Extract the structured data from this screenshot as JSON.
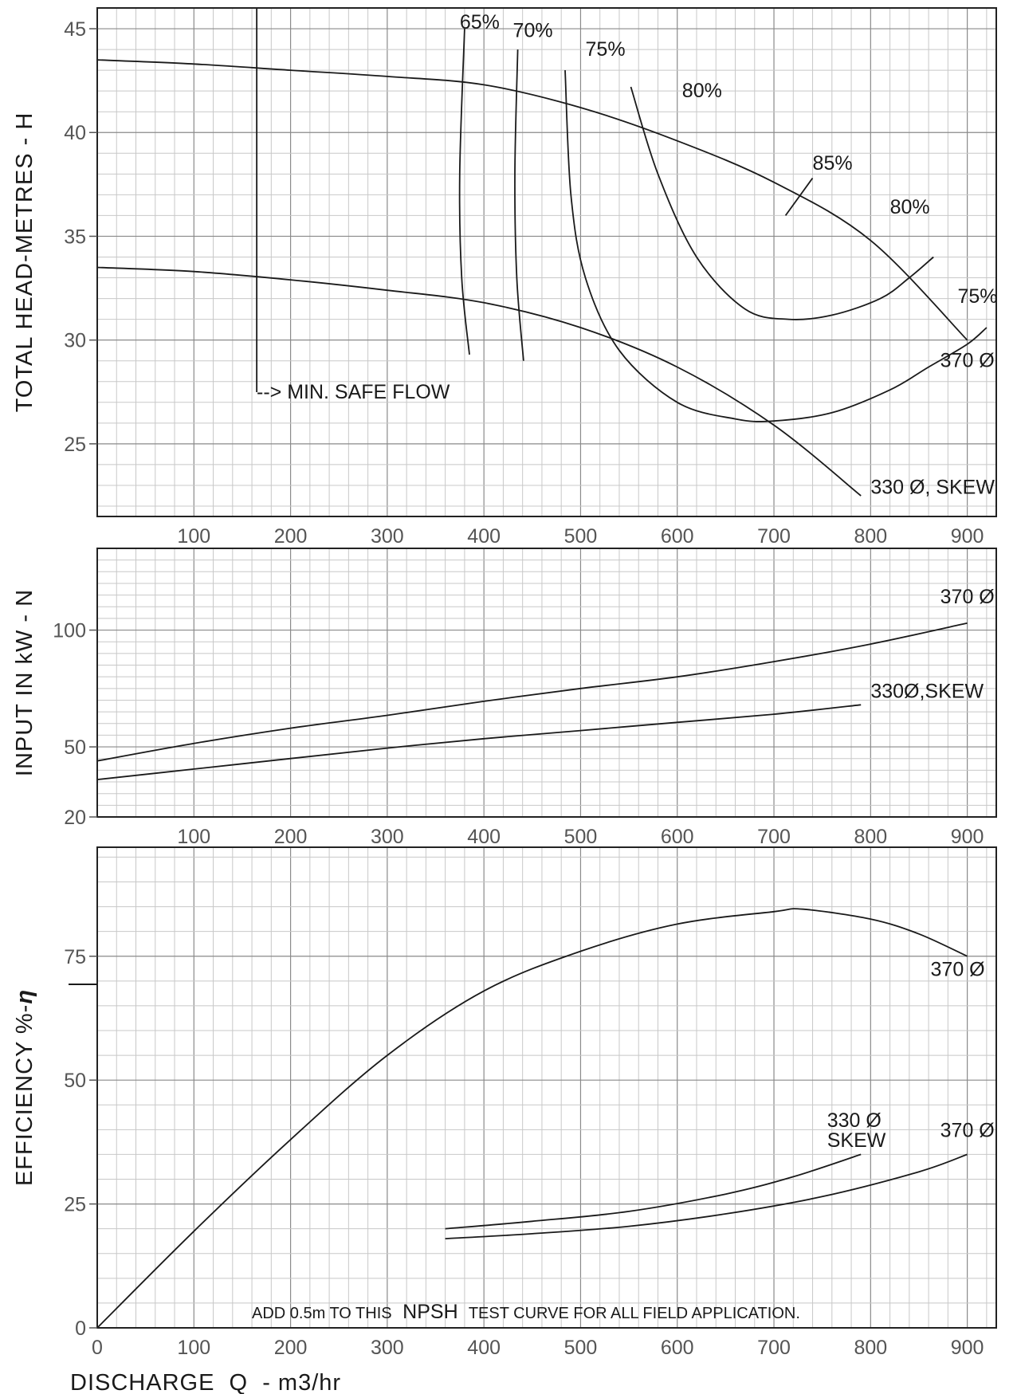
{
  "page": {
    "xlabel": "DISCHARGE  Q  - m3/hr",
    "note_prefix": "ADD 0.5m TO THIS",
    "note_mid": "NPSH",
    "note_suffix": "TEST CURVE FOR ALL FIELD APPLICATION.",
    "min_safe_flow": "--> MIN. SAFE FLOW"
  },
  "chart_data": [
    {
      "id": "head",
      "type": "line",
      "ylabel": "TOTAL HEAD-METRES - H",
      "xlim": [
        0,
        930
      ],
      "ylim": [
        21.5,
        46
      ],
      "x_ticks": [
        100,
        200,
        300,
        400,
        500,
        600,
        700,
        800,
        900
      ],
      "x_tick_labels": [
        "100",
        "200",
        "300",
        "400",
        "500",
        "600",
        "700",
        "800",
        "900"
      ],
      "y_ticks": [
        25,
        30,
        35,
        40,
        45
      ],
      "y_tick_labels": [
        "25",
        "30",
        "35",
        "40",
        "45"
      ],
      "min_safe_flow_x": 165,
      "series": [
        {
          "name": "370 Ø",
          "x": [
            0,
            100,
            200,
            300,
            400,
            500,
            600,
            700,
            800,
            900
          ],
          "y": [
            43.5,
            43.3,
            43.0,
            42.7,
            42.3,
            41.2,
            39.6,
            37.6,
            34.8,
            30.0
          ]
        },
        {
          "name": "330 Ø, SKEW",
          "x": [
            0,
            100,
            200,
            300,
            400,
            500,
            600,
            700,
            790
          ],
          "y": [
            33.5,
            33.3,
            32.9,
            32.4,
            31.8,
            30.6,
            28.7,
            25.9,
            22.5
          ]
        }
      ],
      "efficiency_contours": [
        {
          "name": "65%",
          "x": [
            380,
            375,
            377,
            385
          ],
          "y": [
            45.0,
            38.0,
            33.0,
            29.3
          ]
        },
        {
          "name": "70%",
          "x": [
            435,
            432,
            434,
            441
          ],
          "y": [
            44.0,
            38.0,
            33.0,
            29.0
          ]
        },
        {
          "name": "75%",
          "x": [
            484,
            490,
            505,
            540,
            600,
            660,
            700,
            760,
            820,
            860,
            900,
            920
          ],
          "y": [
            43.0,
            37.0,
            33.0,
            29.5,
            27.0,
            26.2,
            26.1,
            26.5,
            27.6,
            28.7,
            29.8,
            30.6
          ]
        },
        {
          "name": "80%",
          "x": [
            552,
            580,
            620,
            670,
            715,
            760,
            810,
            840,
            865
          ],
          "y": [
            42.2,
            38.0,
            34.0,
            31.5,
            31.0,
            31.2,
            32.0,
            33.0,
            34.0
          ]
        },
        {
          "name": "85%",
          "x": [
            712,
            740
          ],
          "y": [
            36.0,
            37.8
          ]
        }
      ],
      "annotations": [
        {
          "text": "65%",
          "x": 375,
          "y": 45.0
        },
        {
          "text": "70%",
          "x": 430,
          "y": 44.6
        },
        {
          "text": "75%",
          "x": 505,
          "y": 43.7
        },
        {
          "text": "80%",
          "x": 605,
          "y": 41.7
        },
        {
          "text": "85%",
          "x": 740,
          "y": 38.2
        },
        {
          "text": "80%",
          "x": 820,
          "y": 36.1
        },
        {
          "text": "75%",
          "x": 890,
          "y": 31.8
        },
        {
          "text": "370 Ø",
          "x": 872,
          "y": 28.7
        },
        {
          "text": "330 Ø, SKEW",
          "x": 800,
          "y": 22.6
        }
      ]
    },
    {
      "id": "power",
      "type": "line",
      "ylabel": "INPUT IN kW - N",
      "xlim": [
        0,
        930
      ],
      "ylim": [
        20,
        135
      ],
      "x_ticks": [
        100,
        200,
        300,
        400,
        500,
        600,
        700,
        800,
        900
      ],
      "x_tick_labels": [
        "100",
        "200",
        "300",
        "400",
        "500",
        "600",
        "700",
        "800",
        "900"
      ],
      "y_ticks": [
        20,
        50,
        100
      ],
      "y_tick_labels": [
        "20",
        "50",
        "100"
      ],
      "series": [
        {
          "name": "370 Ø",
          "x": [
            0,
            100,
            200,
            300,
            400,
            500,
            600,
            700,
            800,
            900
          ],
          "y": [
            44,
            51.5,
            58,
            63.5,
            69.5,
            75,
            80,
            86.5,
            94,
            103
          ]
        },
        {
          "name": "330Ø,SKEW",
          "x": [
            0,
            100,
            200,
            300,
            400,
            500,
            600,
            700,
            790
          ],
          "y": [
            36,
            40.5,
            45,
            49.5,
            53.5,
            57,
            60.5,
            64,
            68
          ]
        }
      ],
      "annotations": [
        {
          "text": "370 Ø",
          "x": 872,
          "y": 111.5
        },
        {
          "text": "330Ø,SKEW",
          "x": 800,
          "y": 71
        }
      ]
    },
    {
      "id": "efficiency",
      "type": "line",
      "ylabel": "EFFICIENCY %-",
      "ylabel_symbol": "η",
      "xlim": [
        0,
        930
      ],
      "ylim": [
        0,
        97
      ],
      "x_ticks": [
        0,
        100,
        200,
        300,
        400,
        500,
        600,
        700,
        800,
        900
      ],
      "x_tick_labels": [
        "0",
        "100",
        "200",
        "300",
        "400",
        "500",
        "600",
        "700",
        "800",
        "900"
      ],
      "y_ticks": [
        0,
        25,
        50,
        75
      ],
      "y_tick_labels": [
        "0",
        "25",
        "50",
        "75"
      ],
      "series": [
        {
          "name": "370 Ø",
          "x": [
            0,
            100,
            200,
            300,
            400,
            500,
            600,
            700,
            730,
            800,
            850,
            900
          ],
          "y": [
            0,
            19.5,
            38,
            55,
            68,
            76,
            81.5,
            84,
            84.5,
            82.5,
            79.5,
            75
          ]
        },
        {
          "name": "330 Ø SKEW",
          "x": [
            360,
            450,
            550,
            650,
            720,
            790
          ],
          "y": [
            20,
            21.5,
            23.5,
            27,
            30.5,
            35
          ]
        },
        {
          "name": "370 Ø",
          "x": [
            360,
            450,
            550,
            650,
            750,
            850,
            900
          ],
          "y": [
            18,
            19,
            20.5,
            23,
            26.5,
            31.5,
            35
          ]
        }
      ],
      "annotations": [
        {
          "text": "370 Ø",
          "x": 862,
          "y": 71
        },
        {
          "text": "330 Ø",
          "x": 755,
          "y": 40.5
        },
        {
          "text": "SKEW",
          "x": 755,
          "y": 36.5
        },
        {
          "text": "370 Ø",
          "x": 872,
          "y": 38.5
        }
      ]
    }
  ]
}
